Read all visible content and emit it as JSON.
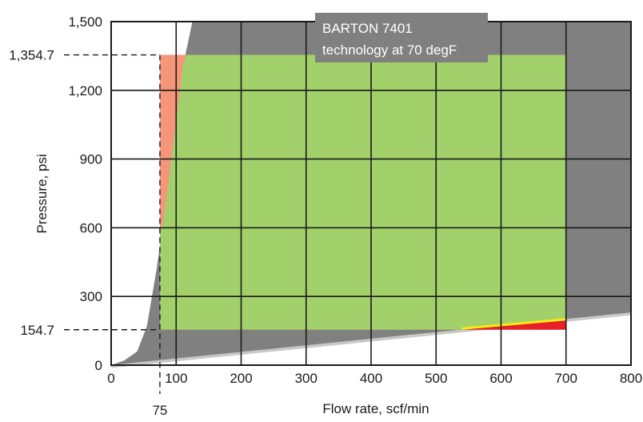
{
  "chart_data": {
    "type": "area",
    "title": "",
    "xlabel": "Flow rate, scf/min",
    "ylabel": "Pressure, psi",
    "xlim": [
      0,
      800
    ],
    "ylim": [
      0,
      1500
    ],
    "x_ticks": [
      0,
      100,
      200,
      300,
      400,
      500,
      600,
      700,
      800
    ],
    "y_ticks": [
      0,
      300,
      600,
      900,
      1200,
      1500
    ],
    "y_tick_labels": [
      "0",
      "300",
      "600",
      "900",
      "1,200",
      "1,500"
    ],
    "x_tick_labels": [
      "0",
      "100",
      "200",
      "300",
      "400",
      "500",
      "600",
      "700",
      "800"
    ],
    "grid": true,
    "reference_lines": {
      "x": {
        "value": 75,
        "label": "75"
      },
      "y": [
        {
          "value": 1354.7,
          "label": "1,354.7"
        },
        {
          "value": 154.7,
          "label": "154.7"
        }
      ]
    },
    "annotation": {
      "lines": [
        "BARTON 7401",
        "technology at 70 degF"
      ]
    },
    "regions": {
      "gray_upper_boundary": [
        [
          0,
          0
        ],
        [
          20,
          20
        ],
        [
          40,
          60
        ],
        [
          55,
          170
        ],
        [
          70,
          420
        ],
        [
          80,
          620
        ],
        [
          95,
          950
        ],
        [
          110,
          1300
        ],
        [
          125,
          1500
        ]
      ],
      "gray_lower_boundary": [
        [
          0,
          0
        ],
        [
          800,
          230
        ]
      ],
      "green_box": {
        "x": [
          75,
          700
        ],
        "y": [
          154.7,
          1354.7
        ]
      },
      "salmon_region": {
        "x_start": 75,
        "y": [
          154.7,
          1354.7
        ],
        "boundary": [
          [
            75,
            580
          ],
          [
            80,
            620
          ],
          [
            95,
            950
          ],
          [
            110,
            1300
          ],
          [
            115,
            1354.7
          ]
        ]
      },
      "red_region": {
        "x": [
          540,
          700
        ],
        "y_top_start": 154.7,
        "y_top_end": 200
      },
      "yellow_line": [
        [
          540,
          160
        ],
        [
          700,
          200
        ]
      ]
    },
    "colors": {
      "gray": "#808080",
      "lower_band": "#c8c8c8",
      "green": "#a2d06a",
      "salmon": "#f5957a",
      "red": "#e8202a",
      "yellow": "#f6eb14",
      "grid": "#1a1a1a"
    }
  }
}
